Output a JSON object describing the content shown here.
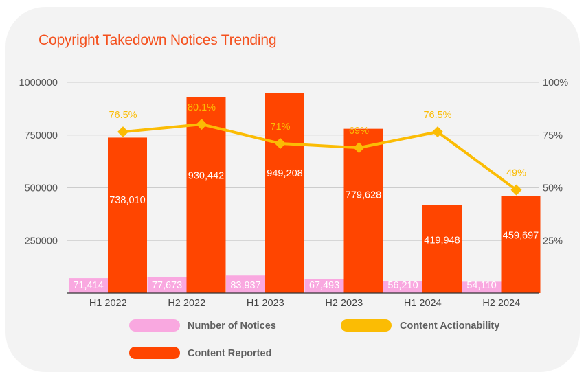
{
  "chart_data": {
    "type": "bar",
    "title": "Copyright Takedown Notices Trending",
    "categories": [
      "H1 2022",
      "H2 2022",
      "H1 2023",
      "H2 2023",
      "H1 2024",
      "H2 2024"
    ],
    "y_left": {
      "ticks": [
        "1000000",
        "750000",
        "500000",
        "250000"
      ],
      "ylim": [
        0,
        1000000
      ]
    },
    "y_right": {
      "ticks": [
        "100%",
        "75%",
        "50%",
        "25%"
      ],
      "ylim": [
        0,
        100
      ]
    },
    "grid": true,
    "legend_placement": "bottom",
    "series": [
      {
        "name": "Number of Notices",
        "type": "bar",
        "axis": "left",
        "color": "#f9a8e0",
        "values": [
          71414,
          77673,
          83937,
          67493,
          56210,
          54110
        ],
        "labels": [
          "71,414",
          "77,673",
          "83,937",
          "67,493",
          "56,210",
          "54,110"
        ]
      },
      {
        "name": "Content Reported",
        "type": "bar",
        "axis": "left",
        "color": "#ff4500",
        "values": [
          738010,
          930442,
          949208,
          779628,
          419948,
          459697
        ],
        "labels": [
          "738,010",
          "930,442",
          "949,208",
          "779,628",
          "419,948",
          "459,697"
        ]
      },
      {
        "name": "Content Actionability",
        "type": "line",
        "axis": "right",
        "color": "#fbbc04",
        "values": [
          76.5,
          80.1,
          71,
          69,
          76.5,
          49
        ],
        "labels": [
          "76.5%",
          "80.1%",
          "71%",
          "69%",
          "76.5%",
          "49%"
        ]
      }
    ],
    "legend": [
      {
        "label": "Number of Notices",
        "color": "#f9a8e0"
      },
      {
        "label": "Content Actionability",
        "color": "#fbbc04"
      },
      {
        "label": "Content Reported",
        "color": "#ff4500"
      }
    ]
  }
}
